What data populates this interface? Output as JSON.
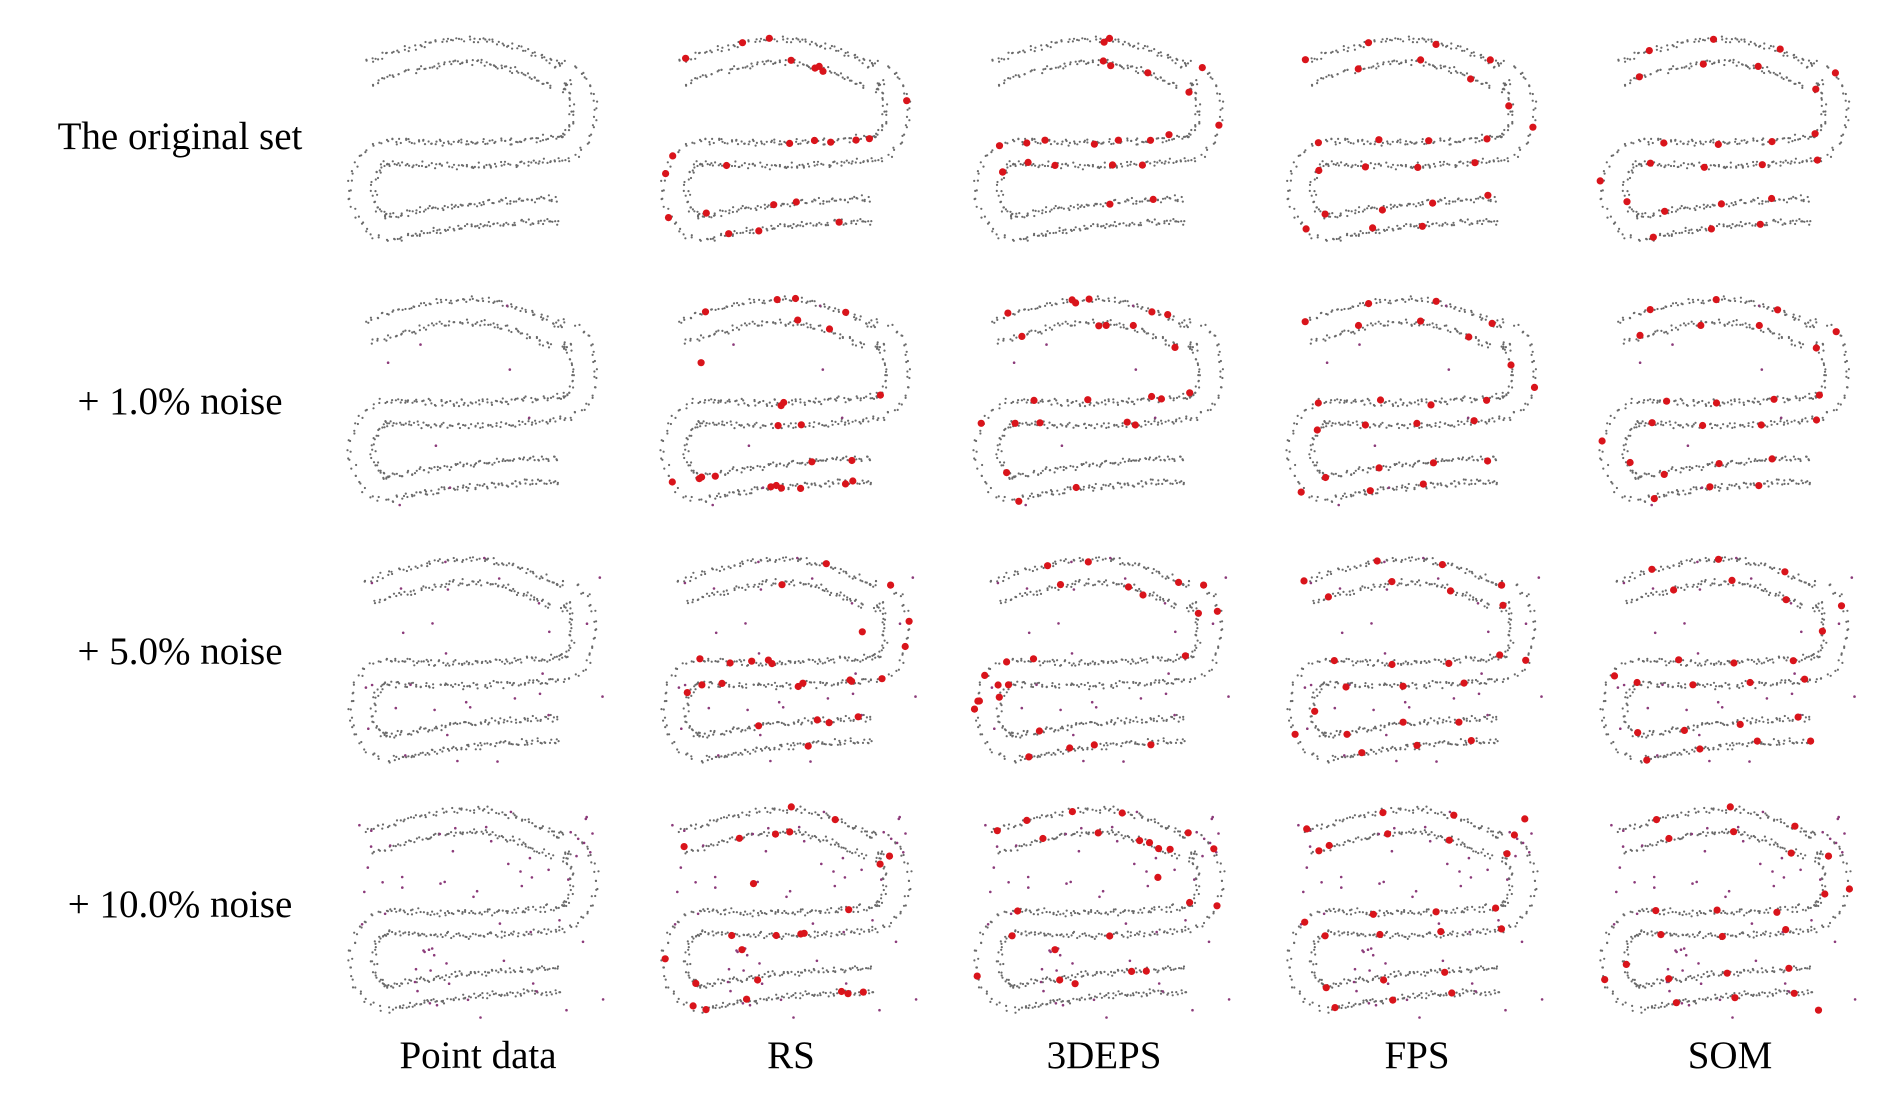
{
  "figure": {
    "rows": [
      {
        "id": "original",
        "label": "The original set",
        "noise_points": 0
      },
      {
        "id": "noise-1",
        "label": "+ 1.0% noise",
        "noise_points": 8
      },
      {
        "id": "noise-5",
        "label": "+ 5.0% noise",
        "noise_points": 30
      },
      {
        "id": "noise-10",
        "label": "+ 10.0% noise",
        "noise_points": 60
      }
    ],
    "columns": [
      {
        "id": "point-data",
        "label": "Point data",
        "sampled_points": 0
      },
      {
        "id": "rs",
        "label": "RS",
        "sampled_points": 24
      },
      {
        "id": "3deps",
        "label": "3DEPS",
        "sampled_points": 24
      },
      {
        "id": "fps",
        "label": "FPS",
        "sampled_points": 24
      },
      {
        "id": "som",
        "label": "SOM",
        "sampled_points": 24
      }
    ],
    "colors": {
      "surface_point": "#6a6a6a",
      "noise_point": "#8b3a7a",
      "sampled_point": "#d9141b",
      "text": "#000000"
    }
  }
}
